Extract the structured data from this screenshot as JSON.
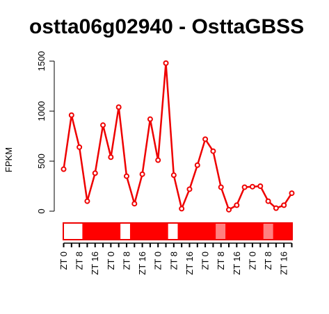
{
  "chart_data": {
    "type": "line",
    "title": "ostta06g02940 - OsttaGBSS",
    "ylabel": "FPKM",
    "xlabel": "",
    "ylim": [
      0,
      1500
    ],
    "yticks": [
      0,
      500,
      1000,
      1500
    ],
    "series_color": "#ee0000",
    "series": [
      {
        "values": [
          420,
          960,
          640,
          100,
          380,
          860,
          540,
          1040,
          350,
          75,
          370,
          920,
          510,
          1480,
          360,
          25,
          220,
          460,
          720,
          600,
          240,
          15,
          60,
          240,
          245,
          250,
          100,
          30,
          60,
          180
        ]
      }
    ],
    "x_tick_labels": [
      "ZT 0",
      "ZT 8",
      "ZT 16",
      "ZT 0",
      "ZT 8",
      "ZT 16",
      "ZT 0",
      "ZT 8",
      "ZT 16",
      "ZT 0",
      "ZT 8",
      "ZT 16",
      "ZT 0",
      "ZT 8",
      "ZT 16"
    ],
    "condition_bar": [
      {
        "color": "#ffffff",
        "span": 2
      },
      {
        "color": "#ff0000",
        "span": 4
      },
      {
        "color": "#ffffff",
        "span": 1
      },
      {
        "color": "#ff0000",
        "span": 4
      },
      {
        "color": "#ffffff",
        "span": 1
      },
      {
        "color": "#ff0000",
        "span": 4
      },
      {
        "color": "#ff8080",
        "span": 1
      },
      {
        "color": "#ff0000",
        "span": 4
      },
      {
        "color": "#ff8080",
        "span": 1
      },
      {
        "color": "#ff0000",
        "span": 2
      }
    ]
  }
}
